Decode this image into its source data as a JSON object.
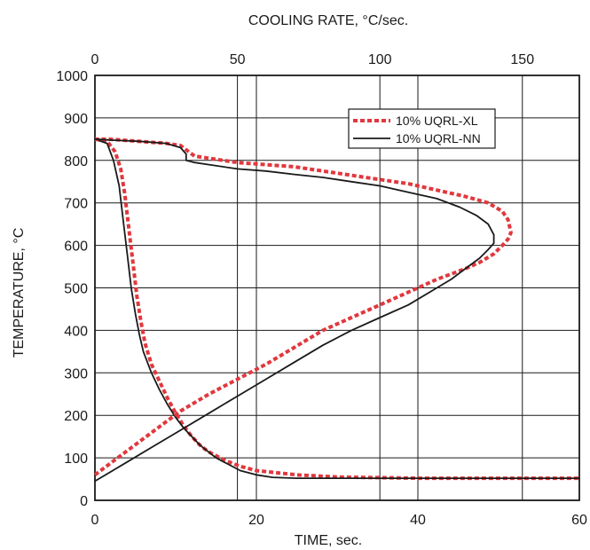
{
  "chart_data": {
    "type": "line",
    "title": "",
    "xlabel": "TIME, sec.",
    "x2label": "COOLING RATE, °C/sec.",
    "ylabel": "TEMPERATURE, °C",
    "xlim": [
      0,
      60
    ],
    "x2lim": [
      0,
      170
    ],
    "ylim": [
      0,
      1000
    ],
    "x_ticks": [
      "0",
      "20",
      "40",
      "60"
    ],
    "x2_ticks": [
      "0",
      "50",
      "100",
      "150"
    ],
    "y_ticks": [
      "0",
      "100",
      "200",
      "300",
      "400",
      "500",
      "600",
      "700",
      "800",
      "900",
      "1000"
    ],
    "grid": true,
    "legend_position": "top-right",
    "colors": {
      "xl": "#e0383e",
      "nn": "#1a1a1a"
    },
    "series": [
      {
        "name": "10% UQRL-XL",
        "style": "dotted",
        "kind": "temperature_vs_time",
        "x": [
          0,
          1.5,
          2.5,
          3.2,
          3.7,
          4.2,
          4.7,
          5.2,
          5.7,
          6.2,
          7,
          8,
          9,
          10,
          11,
          12,
          13,
          14,
          16,
          18,
          20,
          25,
          30,
          40,
          50,
          60
        ],
        "y": [
          850,
          845,
          820,
          780,
          720,
          640,
          560,
          480,
          420,
          370,
          320,
          280,
          240,
          205,
          175,
          150,
          130,
          115,
          95,
          80,
          70,
          60,
          55,
          52,
          52,
          52
        ]
      },
      {
        "name": "10% UQRL-NN",
        "style": "solid",
        "kind": "temperature_vs_time",
        "x": [
          0,
          1.5,
          2.3,
          3,
          3.5,
          4,
          4.5,
          5,
          5.5,
          6,
          7,
          8,
          9,
          10,
          11,
          12,
          13,
          14,
          15,
          16,
          18,
          20,
          22,
          25,
          30,
          40,
          50,
          60
        ],
        "y": [
          850,
          840,
          800,
          740,
          660,
          580,
          500,
          440,
          390,
          350,
          300,
          260,
          225,
          195,
          170,
          150,
          130,
          115,
          100,
          90,
          70,
          60,
          54,
          52,
          52,
          52,
          52,
          52
        ]
      },
      {
        "name": "10% UQRL-XL",
        "style": "dotted",
        "kind": "temperature_vs_cooling_rate",
        "x": [
          0,
          10,
          20,
          30,
          40,
          50,
          60,
          70,
          80,
          90,
          100,
          110,
          120,
          130,
          135,
          140,
          143,
          145,
          146,
          145,
          143,
          138,
          130,
          120,
          110,
          100,
          90,
          80,
          70,
          60,
          50,
          45,
          40,
          35,
          33,
          30,
          25,
          15,
          5,
          0
        ],
        "y": [
          60,
          110,
          160,
          210,
          250,
          285,
          320,
          360,
          400,
          430,
          460,
          490,
          520,
          545,
          560,
          580,
          600,
          615,
          630,
          660,
          680,
          700,
          715,
          730,
          745,
          755,
          765,
          775,
          785,
          790,
          795,
          800,
          805,
          810,
          820,
          835,
          840,
          845,
          850,
          850
        ]
      },
      {
        "name": "10% UQRL-NN",
        "style": "solid",
        "kind": "temperature_vs_cooling_rate",
        "x": [
          0,
          10,
          20,
          30,
          40,
          50,
          60,
          70,
          80,
          90,
          100,
          110,
          120,
          125,
          130,
          135,
          138,
          140,
          140,
          138,
          134,
          128,
          120,
          110,
          100,
          90,
          80,
          70,
          60,
          50,
          40,
          35,
          32,
          32,
          30,
          25,
          15,
          5,
          0
        ],
        "y": [
          45,
          85,
          125,
          165,
          205,
          245,
          285,
          325,
          365,
          400,
          430,
          460,
          500,
          520,
          545,
          570,
          590,
          605,
          625,
          650,
          670,
          690,
          710,
          725,
          740,
          750,
          760,
          767,
          775,
          780,
          790,
          795,
          800,
          815,
          830,
          840,
          845,
          848,
          850
        ]
      }
    ]
  }
}
